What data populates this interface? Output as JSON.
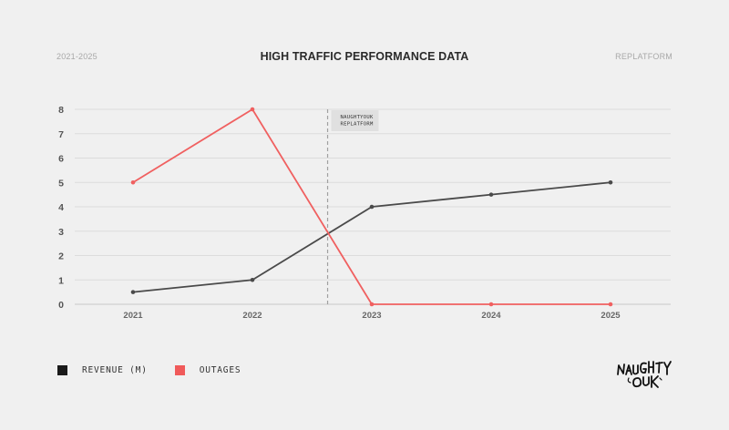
{
  "header": {
    "range_label": "2021-2025",
    "title": "HIGH TRAFFIC PERFORMANCE DATA",
    "brand_label": "REPLATFORM"
  },
  "colors": {
    "revenue": "#4a4a4a",
    "outages": "#f06060",
    "grid": "#dcdcdc",
    "annotation_line": "#a0a0a0",
    "annotation_box": "#e0e0e0"
  },
  "legend": {
    "items": [
      {
        "label": "REVENUE (M)",
        "color": "#1a1a1a"
      },
      {
        "label": "OUTAGES",
        "color": "#f05a5a"
      }
    ]
  },
  "logo": {
    "text": "NAUGHTYOUK",
    "icon": "naughtyouk-logo-icon"
  },
  "chart_data": {
    "type": "line",
    "x": [
      "2021",
      "2022",
      "2023",
      "2024",
      "2025"
    ],
    "yticks": [
      "0",
      "1",
      "2",
      "3",
      "4",
      "5",
      "6",
      "7",
      "8"
    ],
    "ylim": [
      0,
      8
    ],
    "grid": true,
    "legend_position": "bottom-left",
    "series": [
      {
        "name": "REVENUE (M)",
        "values": [
          0.5,
          1,
          4,
          4.5,
          5
        ]
      },
      {
        "name": "OUTAGES",
        "values": [
          5,
          8,
          0,
          0,
          0
        ]
      }
    ],
    "annotation": {
      "x": 2022.63,
      "lines": [
        "NAUGHTYOUK",
        "REPLATFORM"
      ]
    }
  }
}
